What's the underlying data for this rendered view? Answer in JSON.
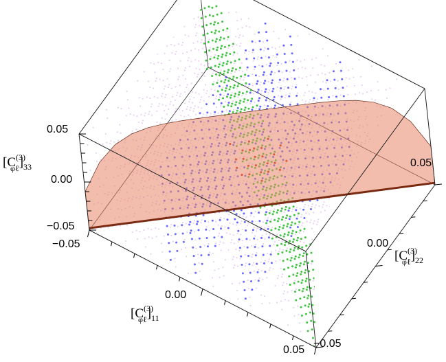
{
  "chart_data": {
    "type": "scatter",
    "projection": "3d",
    "axes": {
      "x": {
        "label_base": "[C",
        "label_sup": "(3)",
        "label_sub": "φℓ",
        "label_index": "]",
        "label_index_sub": "11",
        "range": [
          -0.05,
          0.05
        ],
        "tick_labels": [
          "−0.05",
          "0.00",
          "0.05"
        ]
      },
      "y": {
        "label_base": "[C",
        "label_sup": "(3)",
        "label_sub": "φℓ",
        "label_index": "]",
        "label_index_sub": "22",
        "range": [
          -0.05,
          0.05
        ],
        "tick_labels": [
          "−0.05",
          "0.00",
          "0.05"
        ]
      },
      "z": {
        "label_base": "[C",
        "label_sup": "(3)",
        "label_sub": "φℓ",
        "label_index": "]",
        "label_index_sub": "33",
        "range": [
          -0.05,
          0.05
        ],
        "tick_labels": [
          "−0.05",
          "0.00",
          "0.05"
        ]
      }
    },
    "regions": [
      {
        "color": "#cc99dd",
        "shape": "fills full box (light violet points)"
      },
      {
        "color": "#4444ff",
        "shape": "slabs |x| in [0.006, 0.025]"
      },
      {
        "color": "#22bb22",
        "shape": "thin plane x + y ≈ 0"
      },
      {
        "color": "#cc2200",
        "shape": "small blob near x=y=z=0"
      },
      {
        "color": "#e8866a",
        "shape": "surface through diagonal x = y"
      }
    ],
    "grid": false,
    "box": true
  }
}
